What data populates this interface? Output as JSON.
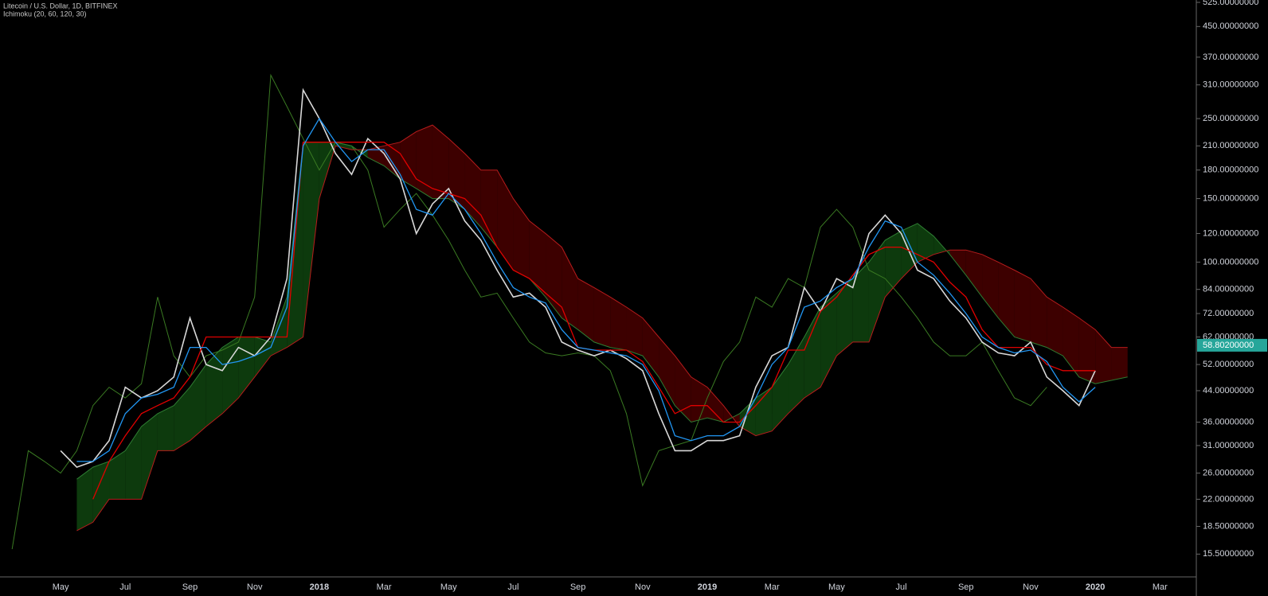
{
  "header": {
    "title": "Litecoin / U.S. Dollar, 1D, BITFINEX",
    "indicator": "Ichimoku (20, 60, 120, 30)"
  },
  "chart_data": {
    "type": "line",
    "log_scale": true,
    "background": "#000000",
    "cloud_colors": {
      "up": "#0d3a0d",
      "down": "#3d0000"
    },
    "categories": [
      null,
      null,
      null,
      "May",
      null,
      null,
      null,
      "Jul",
      null,
      null,
      null,
      "Sep",
      null,
      null,
      null,
      "Nov",
      null,
      null,
      null,
      "2018",
      null,
      null,
      null,
      "Mar",
      null,
      null,
      null,
      "May",
      null,
      null,
      null,
      "Jul",
      null,
      null,
      null,
      "Sep",
      null,
      null,
      null,
      "Nov",
      null,
      null,
      null,
      "2019",
      null,
      null,
      null,
      "Mar",
      null,
      null,
      null,
      "May",
      null,
      null,
      null,
      "Jul",
      null,
      null,
      null,
      "Sep",
      null,
      null,
      null,
      "Nov",
      null,
      null,
      null,
      "2020",
      null,
      null,
      null,
      "Mar",
      null,
      null
    ],
    "series": [
      {
        "color": "#3a7a22",
        "width": 1,
        "values": [
          16,
          30,
          28,
          26,
          30,
          40,
          45,
          42,
          46,
          80,
          55,
          48,
          55,
          57,
          60,
          80,
          330,
          270,
          220,
          180,
          215,
          210,
          180,
          125,
          140,
          155,
          135,
          115,
          95,
          80,
          82,
          70,
          60,
          56,
          55,
          56,
          55,
          50,
          38,
          24,
          30,
          31,
          32,
          42,
          53,
          60,
          80,
          75,
          90,
          85,
          125,
          140,
          125,
          95,
          90,
          80,
          70,
          60,
          55,
          55,
          60,
          50,
          42,
          40,
          45,
          null,
          null,
          null,
          null,
          null,
          null,
          null,
          null,
          null
        ]
      },
      {
        "color": "#2e7d32",
        "width": 1,
        "values": [
          null,
          null,
          null,
          null,
          25,
          27,
          28,
          30,
          35,
          38,
          40,
          45,
          52,
          58,
          62,
          62,
          60,
          80,
          215,
          215,
          215,
          210,
          195,
          185,
          170,
          160,
          150,
          150,
          140,
          125,
          110,
          95,
          90,
          80,
          70,
          65,
          60,
          58,
          57,
          55,
          48,
          40,
          36,
          37,
          36,
          38,
          42,
          45,
          52,
          62,
          75,
          82,
          90,
          100,
          115,
          122,
          128,
          118,
          105,
          92,
          80,
          70,
          62,
          60,
          58,
          55,
          48,
          46,
          47,
          48,
          null,
          null,
          null,
          null
        ]
      },
      {
        "color": "#b71c1c",
        "width": 1,
        "values": [
          null,
          null,
          null,
          null,
          18,
          19,
          22,
          22,
          22,
          30,
          30,
          32,
          35,
          38,
          42,
          48,
          55,
          58,
          62,
          150,
          210,
          205,
          205,
          210,
          215,
          230,
          240,
          220,
          200,
          180,
          180,
          150,
          130,
          120,
          110,
          90,
          85,
          80,
          75,
          70,
          62,
          55,
          48,
          45,
          40,
          35,
          33,
          34,
          38,
          42,
          45,
          55,
          60,
          60,
          80,
          90,
          100,
          105,
          108,
          108,
          105,
          100,
          95,
          90,
          80,
          75,
          70,
          65,
          58,
          58,
          null,
          null,
          null,
          null
        ]
      },
      {
        "color": "#d8d8d8",
        "width": 1.6,
        "values": [
          null,
          null,
          null,
          30,
          27,
          28,
          32,
          45,
          42,
          44,
          48,
          70,
          52,
          50,
          58,
          55,
          62,
          90,
          300,
          250,
          200,
          175,
          220,
          200,
          170,
          120,
          145,
          160,
          130,
          115,
          95,
          80,
          82,
          75,
          60,
          57,
          55,
          57,
          54,
          50,
          38,
          30,
          30,
          32,
          32,
          33,
          45,
          55,
          58,
          85,
          73,
          90,
          85,
          120,
          135,
          120,
          95,
          90,
          78,
          70,
          60,
          56,
          55,
          60,
          48,
          44,
          40,
          50,
          null,
          null,
          null,
          null,
          null,
          null
        ]
      },
      {
        "color": "#e00000",
        "width": 1.3,
        "values": [
          null,
          null,
          null,
          null,
          null,
          22,
          28,
          33,
          38,
          40,
          42,
          48,
          62,
          62,
          62,
          62,
          62,
          62,
          215,
          215,
          215,
          215,
          215,
          215,
          200,
          170,
          160,
          155,
          150,
          135,
          110,
          95,
          90,
          82,
          75,
          58,
          57,
          57,
          57,
          53,
          45,
          38,
          40,
          40,
          36,
          36,
          40,
          45,
          57,
          57,
          73,
          80,
          92,
          105,
          110,
          110,
          105,
          100,
          88,
          80,
          65,
          58,
          58,
          58,
          52,
          50,
          50,
          50,
          null,
          null,
          null,
          null,
          null,
          null
        ]
      },
      {
        "color": "#2196f3",
        "width": 1.3,
        "values": [
          null,
          null,
          null,
          null,
          28,
          28,
          30,
          38,
          42,
          43,
          45,
          58,
          58,
          52,
          53,
          55,
          58,
          75,
          210,
          250,
          215,
          190,
          205,
          205,
          175,
          140,
          135,
          155,
          140,
          120,
          100,
          85,
          80,
          77,
          65,
          58,
          57,
          56,
          55,
          52,
          44,
          33,
          32,
          33,
          33,
          35,
          42,
          52,
          58,
          75,
          78,
          85,
          90,
          110,
          130,
          125,
          100,
          92,
          82,
          72,
          62,
          58,
          56,
          57,
          53,
          45,
          41,
          45,
          null,
          null,
          null,
          null,
          null,
          null
        ]
      }
    ],
    "cloud": {
      "span_a": 1,
      "span_b": 2
    },
    "last_price": {
      "value": 58.802,
      "label": "58.80200000",
      "color": "#26a69a"
    },
    "ylim": [
      13.4,
      533
    ],
    "yticks": [
      {
        "value": 525,
        "label": "525.00000000"
      },
      {
        "value": 450,
        "label": "450.00000000"
      },
      {
        "value": 370,
        "label": "370.00000000"
      },
      {
        "value": 310,
        "label": "310.00000000"
      },
      {
        "value": 250,
        "label": "250.00000000"
      },
      {
        "value": 210,
        "label": "210.00000000"
      },
      {
        "value": 180,
        "label": "180.00000000"
      },
      {
        "value": 150,
        "label": "150.00000000"
      },
      {
        "value": 120,
        "label": "120.00000000"
      },
      {
        "value": 100,
        "label": "100.00000000"
      },
      {
        "value": 84,
        "label": "84.00000000"
      },
      {
        "value": 72,
        "label": "72.00000000"
      },
      {
        "value": 62,
        "label": "62.00000000"
      },
      {
        "value": 52,
        "label": "52.00000000"
      },
      {
        "value": 44,
        "label": "44.00000000"
      },
      {
        "value": 36,
        "label": "36.00000000"
      },
      {
        "value": 31,
        "label": "31.00000000"
      },
      {
        "value": 26,
        "label": "26.00000000"
      },
      {
        "value": 22,
        "label": "22.00000000"
      },
      {
        "value": 18.5,
        "label": "18.50000000"
      },
      {
        "value": 15.5,
        "label": "15.50000000"
      }
    ],
    "grid": false
  }
}
